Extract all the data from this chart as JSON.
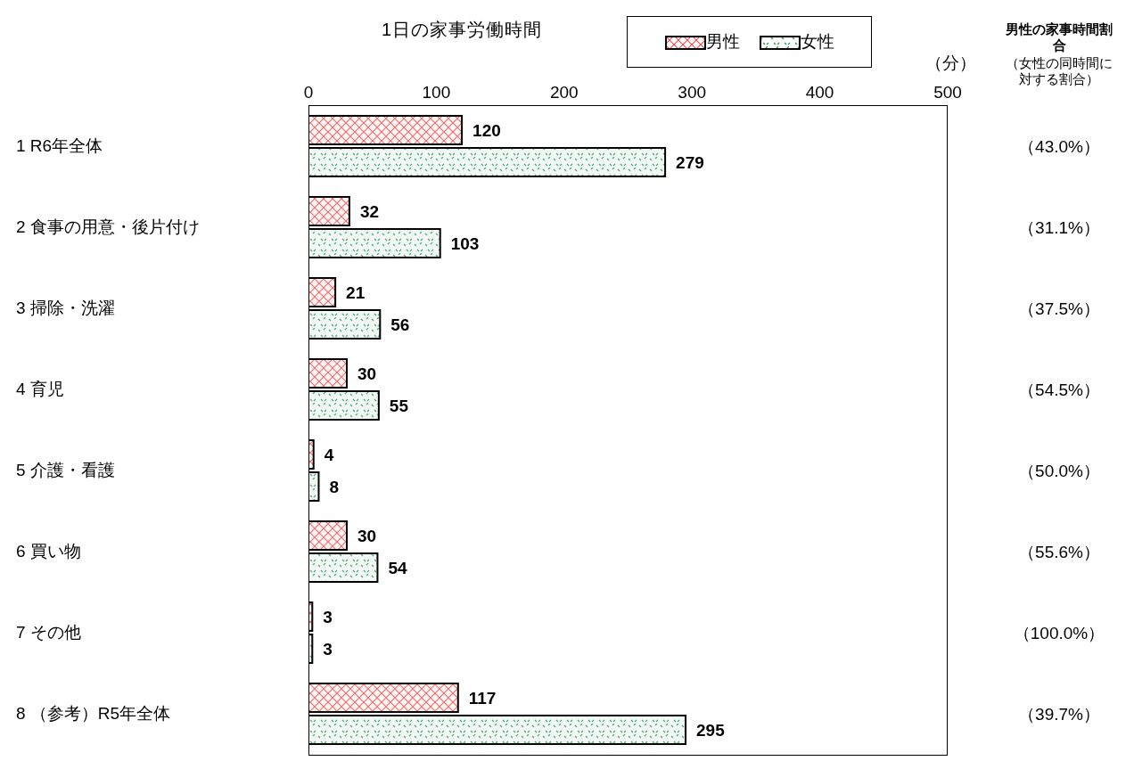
{
  "chart_data": {
    "type": "bar",
    "orientation": "horizontal",
    "title": "1日の家事労働時間",
    "xlabel": "（分）",
    "categories": [
      "1 R6年全体",
      "2 食事の用意・後片付け",
      "3 掃除・洗濯",
      "4 育児",
      "5 介護・看護",
      "6 買い物",
      "7 その他",
      "8 （参考）R5年全体"
    ],
    "series": [
      {
        "name": "男性",
        "color": "#e8504f",
        "values": [
          120,
          32,
          21,
          30,
          4,
          30,
          3,
          117
        ]
      },
      {
        "name": "女性",
        "color": "#2a9d55",
        "values": [
          279,
          103,
          56,
          55,
          8,
          54,
          3,
          295
        ]
      }
    ],
    "xlim": [
      0,
      500
    ],
    "xticks": [
      0,
      100,
      200,
      300,
      400,
      500
    ],
    "data_labels": true,
    "legend": "top",
    "grid": false,
    "annotations": [
      "男性の家事時間割合",
      "（女性の同時間に対する割合）",
      "（43.0%）",
      "（31.1%）",
      "（37.5%）",
      "（54.5%）",
      "（50.0%）",
      "（55.6%）",
      "（100.0%）",
      "（39.7%）"
    ]
  }
}
